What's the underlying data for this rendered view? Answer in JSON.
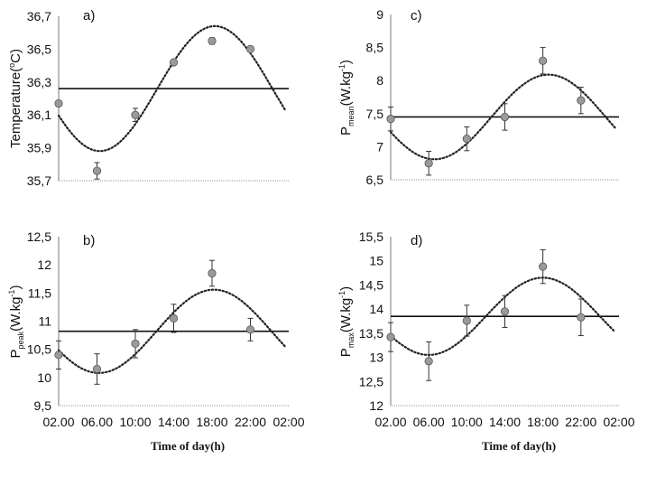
{
  "chart_data": [
    {
      "type": "scatter",
      "panel_label": "a)",
      "ylabel": "Temperature(°C)",
      "ylabel_parts": {
        "main": "Temperature(",
        "sup": "o",
        "rest": "C)"
      },
      "ylim": [
        35.7,
        36.7
      ],
      "yticks": [
        "35,7",
        "35,9",
        "36,1",
        "36,3",
        "36,5",
        "36,7"
      ],
      "xticks": [
        "02.00",
        "06.00",
        "10:00",
        "14:00",
        "18:00",
        "22:00",
        "02:00"
      ],
      "x": [
        "02.00",
        "06.00",
        "10:00",
        "14:00",
        "18:00",
        "22:00"
      ],
      "values": [
        36.17,
        35.76,
        36.1,
        36.42,
        36.55,
        36.5
      ],
      "errors": [
        0.015,
        0.05,
        0.04,
        0.01,
        0.02,
        0.01
      ],
      "mesor": 36.26,
      "cosinor": {
        "mesor": 36.26,
        "amplitude": 0.38,
        "acrophase_hour": 18.3,
        "period_h": 24
      }
    },
    {
      "type": "scatter",
      "panel_label": "c)",
      "ylabel_parts": {
        "main": "P",
        "sub": "mean",
        "rest": "(W.kg",
        "sup": "-1",
        "end": ")"
      },
      "ylim": [
        6.5,
        9
      ],
      "yticks": [
        "6,5",
        "7",
        "7,5",
        "8",
        "8,5",
        "9"
      ],
      "xticks": [
        "02.00",
        "06.00",
        "10:00",
        "14:00",
        "18:00",
        "22:00",
        "02:00"
      ],
      "x": [
        "02.00",
        "06.00",
        "10:00",
        "14:00",
        "18:00",
        "22:00"
      ],
      "values": [
        7.42,
        6.75,
        7.12,
        7.45,
        8.3,
        7.7
      ],
      "errors": [
        0.18,
        0.18,
        0.18,
        0.2,
        0.2,
        0.2
      ],
      "mesor": 7.45,
      "cosinor": {
        "mesor": 7.45,
        "amplitude": 0.64,
        "acrophase_hour": 18.6,
        "period_h": 24
      }
    },
    {
      "type": "scatter",
      "panel_label": "b)",
      "ylabel_parts": {
        "main": "P",
        "sub": "peak",
        "rest": "(W.kg",
        "sup": "-1",
        "end": ")"
      },
      "ylim": [
        9.5,
        12.5
      ],
      "yticks": [
        "9,5",
        "10",
        "10,5",
        "11",
        "11,5",
        "12",
        "12,5"
      ],
      "xticks": [
        "02.00",
        "06.00",
        "10:00",
        "14:00",
        "18:00",
        "22:00",
        "02:00"
      ],
      "x": [
        "02.00",
        "06.00",
        "10:00",
        "14:00",
        "18:00",
        "22:00"
      ],
      "values": [
        10.4,
        10.15,
        10.6,
        11.05,
        11.85,
        10.85
      ],
      "errors": [
        0.25,
        0.27,
        0.25,
        0.25,
        0.23,
        0.2
      ],
      "mesor": 10.82,
      "cosinor": {
        "mesor": 10.82,
        "amplitude": 0.74,
        "acrophase_hour": 18.2,
        "period_h": 24
      }
    },
    {
      "type": "scatter",
      "panel_label": "d)",
      "ylabel_parts": {
        "main": "P",
        "sub": "max",
        "rest": "(W.kg",
        "sup": "-1",
        "end": ")"
      },
      "ylim": [
        12,
        15.5
      ],
      "yticks": [
        "12",
        "12,5",
        "13",
        "13,5",
        "14",
        "14,5",
        "15",
        "15,5"
      ],
      "xticks": [
        "02.00",
        "06.00",
        "10:00",
        "14:00",
        "18:00",
        "22:00",
        "02:00"
      ],
      "x": [
        "02.00",
        "06.00",
        "10:00",
        "14:00",
        "18:00",
        "22:00"
      ],
      "values": [
        13.42,
        12.92,
        13.76,
        13.95,
        14.88,
        13.83
      ],
      "errors": [
        0.3,
        0.4,
        0.32,
        0.33,
        0.35,
        0.38
      ],
      "mesor": 13.85,
      "cosinor": {
        "mesor": 13.85,
        "amplitude": 0.8,
        "acrophase_hour": 18.0,
        "period_h": 24
      }
    }
  ],
  "xlabel_left": "Time of day(h)",
  "xlabel_right": "Time of day(h)"
}
